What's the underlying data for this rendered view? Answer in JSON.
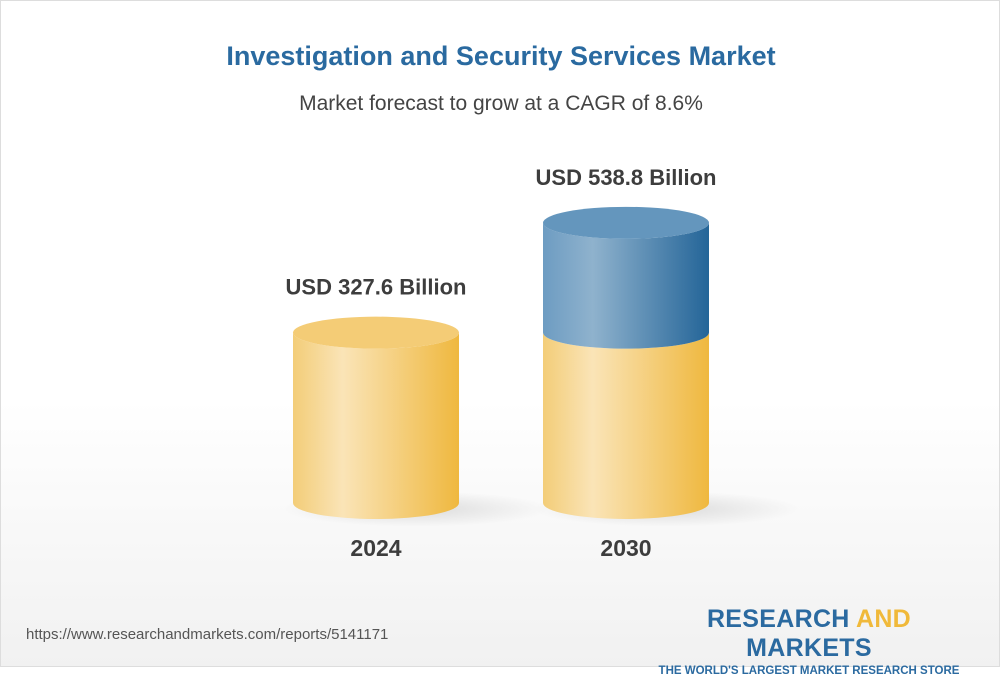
{
  "chart_data": {
    "type": "bar",
    "title": "Investigation and Security Services Market",
    "subtitle": "Market forecast to grow at a CAGR of 8.6%",
    "categories": [
      "2024",
      "2030"
    ],
    "values": [
      327.6,
      538.8
    ],
    "data_labels": [
      "USD 327.6 Billion",
      "USD 538.8 Billion"
    ],
    "unit": "USD Billion",
    "style": "3d-cylinder",
    "colors": {
      "base": "#f2c260",
      "growth": "#2b6aa0"
    },
    "grid": false
  },
  "footer": {
    "url": "https://www.researchandmarkets.com/reports/5141171",
    "logo": {
      "part1": "RESEARCH ",
      "part2": "AND",
      "part3": " MARKETS",
      "tagline": "THE WORLD'S LARGEST MARKET RESEARCH STORE"
    }
  }
}
